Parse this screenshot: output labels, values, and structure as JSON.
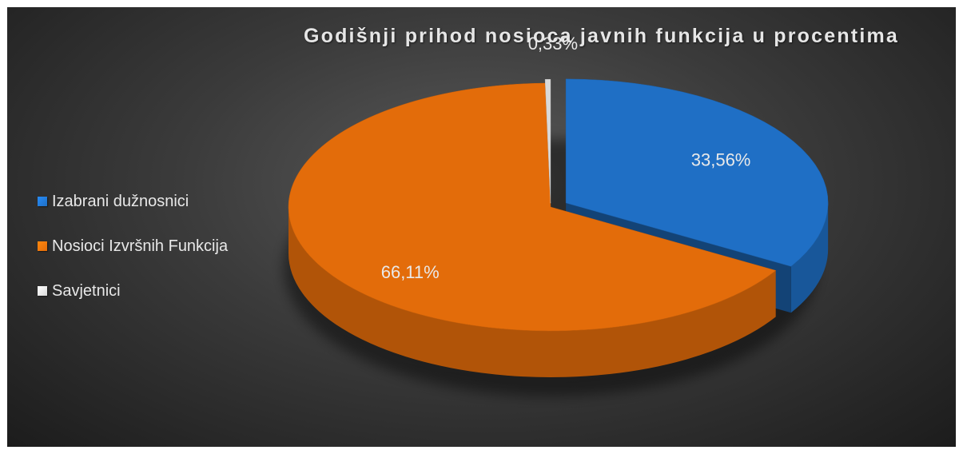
{
  "chart_data": {
    "type": "pie",
    "title": "Godišnji prihod nosioca javnih funkcija u procentima",
    "categories": [
      "Izabrani dužnosnici",
      "Nosioci Izvršnih Funkcija",
      "Savjetnici"
    ],
    "values": [
      33.56,
      66.11,
      0.33
    ],
    "data_labels": [
      "33,56%",
      "66,11%",
      "0,33%"
    ],
    "colors": [
      "#1f6fc5",
      "#e36c0a",
      "#d9d9d9"
    ],
    "legend_position": "left",
    "style": "3d-exploded"
  }
}
